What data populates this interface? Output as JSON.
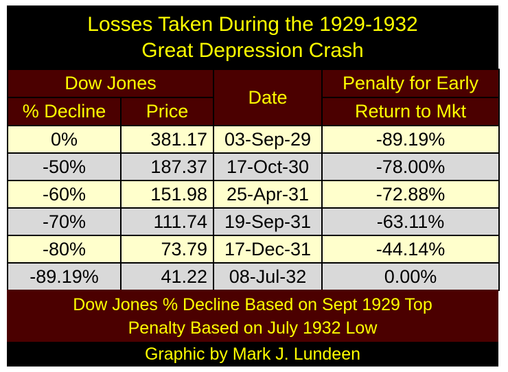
{
  "title": {
    "line1": "Losses Taken During the 1929-1932",
    "line2": "Great Depression Crash"
  },
  "header": {
    "group": "Dow Jones",
    "decline": "% Decline",
    "price": "Price",
    "date": "Date",
    "penalty_line1": "Penalty for Early",
    "penalty_line2": "Return to Mkt"
  },
  "rows": [
    {
      "decline": "0%",
      "price": "381.17",
      "date": "03-Sep-29",
      "penalty": "-89.19%"
    },
    {
      "decline": "-50%",
      "price": "187.37",
      "date": "17-Oct-30",
      "penalty": "-78.00%"
    },
    {
      "decline": "-60%",
      "price": "151.98",
      "date": "25-Apr-31",
      "penalty": "-72.88%"
    },
    {
      "decline": "-70%",
      "price": "111.74",
      "date": "19-Sep-31",
      "penalty": "-63.11%"
    },
    {
      "decline": "-80%",
      "price": "73.79",
      "date": "17-Dec-31",
      "penalty": "-44.14%"
    },
    {
      "decline": "-89.19%",
      "price": "41.22",
      "date": "08-Jul-32",
      "penalty": "0.00%"
    }
  ],
  "footer": {
    "line1": "Dow Jones % Decline Based on Sept 1929 Top",
    "line2": "Penalty Based on July 1932 Low"
  },
  "credit": "Graphic by Mark J. Lundeen",
  "colors": {
    "background": "#000000",
    "header_fill": "#4b0000",
    "title_text": "#ffff00",
    "row_light": "#ffffcc",
    "row_gray": "#d9d9d9"
  }
}
